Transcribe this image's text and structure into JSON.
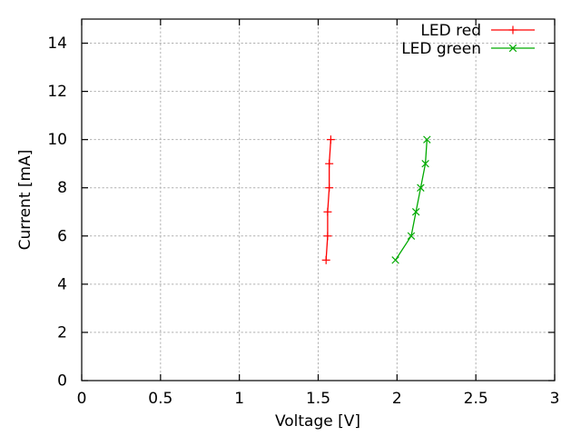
{
  "chart_data": {
    "type": "line",
    "title": "",
    "xlabel": "Voltage [V]",
    "ylabel": "Current [mA]",
    "xlim": [
      0,
      3
    ],
    "ylim": [
      0,
      15
    ],
    "x_ticks": [
      0,
      0.5,
      1,
      1.5,
      2,
      2.5,
      3
    ],
    "x_tick_labels": [
      "0",
      "0.5",
      "1",
      "1.5",
      "2",
      "2.5",
      "3"
    ],
    "y_ticks": [
      0,
      2,
      4,
      6,
      8,
      10,
      12,
      14
    ],
    "y_tick_labels": [
      "0",
      "2",
      "4",
      "6",
      "8",
      "10",
      "12",
      "14"
    ],
    "grid": true,
    "legend_position": "top-right-inside",
    "background": "#ffffff",
    "axis_color": "#000000",
    "grid_color": "#b0b0b0",
    "series": [
      {
        "name": "LED red",
        "color": "#ff0000",
        "marker": "plus",
        "x": [
          1.55,
          1.56,
          1.56,
          1.57,
          1.57,
          1.58
        ],
        "y": [
          5,
          6,
          7,
          8,
          9,
          10
        ]
      },
      {
        "name": "LED green",
        "color": "#00aa00",
        "marker": "cross",
        "x": [
          1.99,
          2.09,
          2.12,
          2.15,
          2.18,
          2.19
        ],
        "y": [
          5,
          6,
          7,
          8,
          9,
          10
        ]
      }
    ]
  }
}
